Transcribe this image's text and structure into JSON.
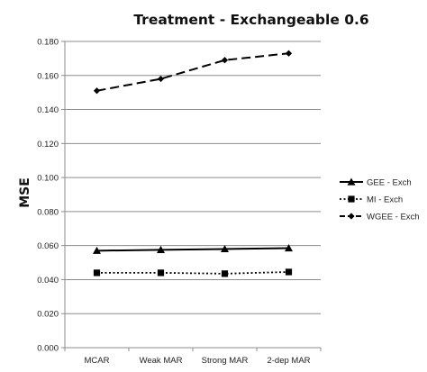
{
  "chart_data": {
    "type": "line",
    "title": "Treatment  -  Exchangeable  0.6",
    "xlabel": "",
    "ylabel": "MSE",
    "categories": [
      "MCAR",
      "Weak MAR",
      "Strong MAR",
      "2-dep MAR"
    ],
    "ylim": [
      0,
      0.18
    ],
    "yticks": [
      "0.000",
      "0.020",
      "0.040",
      "0.060",
      "0.080",
      "0.100",
      "0.120",
      "0.140",
      "0.160",
      "0.180"
    ],
    "grid": true,
    "legend_position": "right",
    "series": [
      {
        "name": "GEE - Exch",
        "values": [
          0.057,
          0.0575,
          0.058,
          0.0585
        ],
        "marker": "triangle",
        "line": "solid"
      },
      {
        "name": "MI - Exch",
        "values": [
          0.044,
          0.044,
          0.0435,
          0.0445
        ],
        "marker": "square",
        "line": "dotted"
      },
      {
        "name": "WGEE - Exch",
        "values": [
          0.151,
          0.158,
          0.169,
          0.173
        ],
        "marker": "diamond",
        "line": "dashed"
      }
    ]
  }
}
